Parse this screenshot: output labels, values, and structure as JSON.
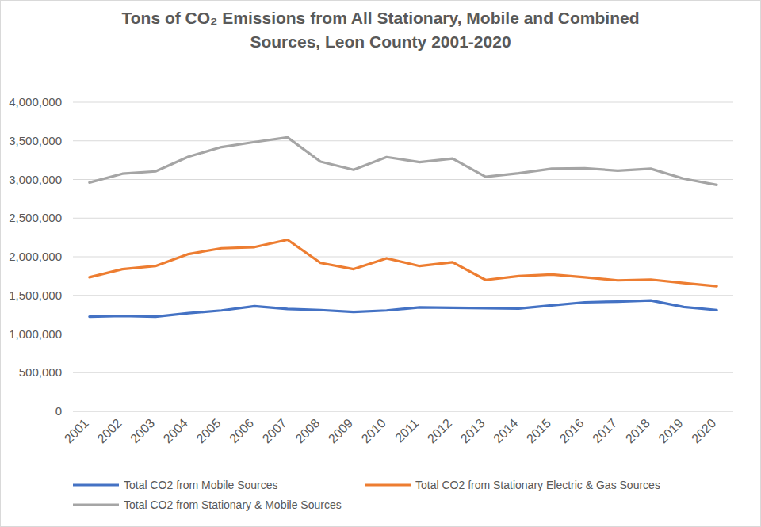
{
  "chart_data": {
    "type": "line",
    "title": "Tons of CO₂ Emissions from All Stationary, Mobile and Combined Sources, Leon County 2001-2020",
    "categories": [
      "2001",
      "2002",
      "2003",
      "2004",
      "2005",
      "2006",
      "2007",
      "2008",
      "2009",
      "2010",
      "2011",
      "2012",
      "2013",
      "2014",
      "2015",
      "2016",
      "2017",
      "2018",
      "2019",
      "2020"
    ],
    "series": [
      {
        "name": "Total CO2 from Mobile Sources",
        "color": "#4472c4",
        "values": [
          1225000,
          1235000,
          1225000,
          1270000,
          1305000,
          1360000,
          1325000,
          1310000,
          1285000,
          1305000,
          1345000,
          1340000,
          1335000,
          1330000,
          1370000,
          1410000,
          1420000,
          1435000,
          1350000,
          1310000
        ]
      },
      {
        "name": "Total CO2 from Stationary Electric & Gas Sources",
        "color": "#ed7d31",
        "values": [
          1735000,
          1840000,
          1880000,
          2035000,
          2110000,
          2125000,
          2220000,
          1920000,
          1840000,
          1980000,
          1880000,
          1930000,
          1700000,
          1750000,
          1770000,
          1735000,
          1695000,
          1705000,
          1660000,
          1620000
        ]
      },
      {
        "name": "Total CO2 from Stationary & Mobile Sources",
        "color": "#a5a5a5",
        "values": [
          2960000,
          3075000,
          3105000,
          3295000,
          3420000,
          3485000,
          3545000,
          3230000,
          3125000,
          3290000,
          3225000,
          3270000,
          3035000,
          3080000,
          3140000,
          3145000,
          3115000,
          3140000,
          3010000,
          2930000
        ]
      }
    ],
    "ylim": [
      0,
      4000000
    ],
    "yticks": [
      0,
      {
        "value": 500000,
        "label": "500,000"
      },
      {
        "value": 1000000,
        "label": "1,000,000"
      },
      {
        "value": 1500000,
        "label": "1,500,000"
      },
      {
        "value": 2000000,
        "label": "2,000,000"
      },
      {
        "value": 2500000,
        "label": "2,500,000"
      },
      {
        "value": 3000000,
        "label": "3,000,000"
      },
      {
        "value": 3500000,
        "label": "3,500,000"
      },
      {
        "value": 4000000,
        "label": "4,000,000"
      }
    ],
    "grid": true,
    "legend": "bottom"
  }
}
